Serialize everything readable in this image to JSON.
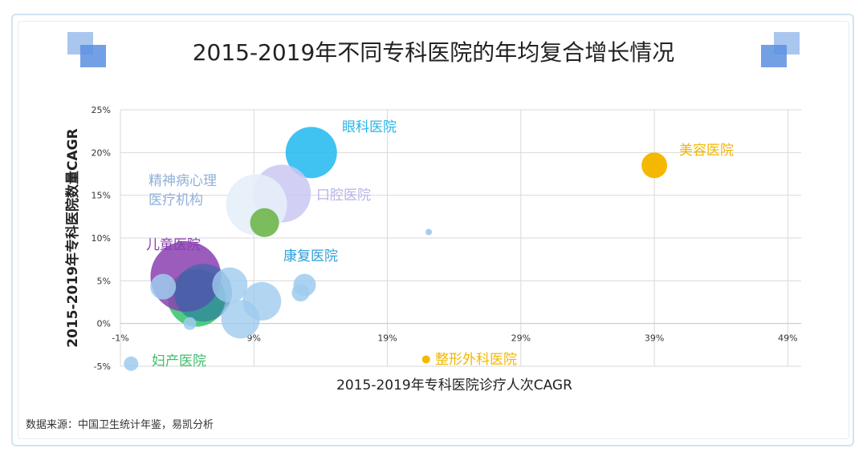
{
  "title": "2015-2019年不同专科医院的年均复合增长情况",
  "source": "数据来源：中国卫生统计年鉴，易凯分析",
  "chart_data": {
    "type": "scatter",
    "title": "2015-2019年不同专科医院的年均复合增长情况",
    "xlabel": "2015-2019年专科医院诊疗人次CAGR",
    "ylabel": "2015-2019年专科医院数量CAGR",
    "xlim": [
      -1,
      50
    ],
    "ylim": [
      -5,
      25
    ],
    "x_ticks": [
      "-1%",
      "9%",
      "19%",
      "29%",
      "39%",
      "49%"
    ],
    "x_tick_values": [
      -1,
      9,
      19,
      29,
      39,
      49
    ],
    "y_ticks": [
      "-5%",
      "0%",
      "5%",
      "10%",
      "15%",
      "20%",
      "25%"
    ],
    "y_tick_values": [
      -5,
      0,
      5,
      10,
      15,
      20,
      25
    ],
    "grid": true,
    "points": [
      {
        "x": 13.3,
        "y": 20.0,
        "r": 32,
        "color": "#2bbcf0",
        "opacity": 0.9,
        "label": "眼科医院",
        "label_color": "#29b6e6"
      },
      {
        "x": 11.1,
        "y": 15.2,
        "r": 36,
        "color": "#c9c7f2",
        "opacity": 0.85,
        "label": "口腔医院",
        "label_color": "#b7b3ea"
      },
      {
        "x": 39.0,
        "y": 18.5,
        "r": 16,
        "color": "#f5b800",
        "opacity": 1,
        "label": "美容医院",
        "label_color": "#f2b600"
      },
      {
        "x": 9.2,
        "y": 13.9,
        "r": 38,
        "color": "#e6eef9",
        "opacity": 0.9,
        "label": "精神病心理医疗机构",
        "label_color": "#8fb0d8"
      },
      {
        "x": 9.8,
        "y": 11.8,
        "r": 18,
        "color": "#6fb64a",
        "opacity": 0.9,
        "label": "",
        "label_color": ""
      },
      {
        "x": 22.1,
        "y": 10.7,
        "r": 4,
        "color": "#a8cdee",
        "opacity": 1,
        "label": "",
        "label_color": ""
      },
      {
        "x": 4.7,
        "y": 3.0,
        "r": 36,
        "color": "#34c46a",
        "opacity": 0.85,
        "label": "",
        "label_color": ""
      },
      {
        "x": 3.9,
        "y": 5.5,
        "r": 44,
        "color": "#8a3fb0",
        "opacity": 0.85,
        "label": "儿童医院",
        "label_color": "#8a3fb0"
      },
      {
        "x": 5.2,
        "y": 3.6,
        "r": 36,
        "color": "#1f6aa8",
        "opacity": 0.55,
        "label": "",
        "label_color": ""
      },
      {
        "x": 7.2,
        "y": 4.5,
        "r": 22,
        "color": "#9fcbef",
        "opacity": 0.8,
        "label": "",
        "label_color": ""
      },
      {
        "x": 9.6,
        "y": 2.6,
        "r": 24,
        "color": "#9fcbef",
        "opacity": 0.8,
        "label": "",
        "label_color": ""
      },
      {
        "x": 8.0,
        "y": 0.5,
        "r": 24,
        "color": "#9fcbef",
        "opacity": 0.8,
        "label": "",
        "label_color": ""
      },
      {
        "x": 2.2,
        "y": 4.3,
        "r": 16,
        "color": "#9fcbef",
        "opacity": 0.85,
        "label": "",
        "label_color": ""
      },
      {
        "x": 12.8,
        "y": 4.5,
        "r": 14,
        "color": "#9fcbef",
        "opacity": 0.85,
        "label": "康复医院",
        "label_color": "#2f9fd8"
      },
      {
        "x": 12.5,
        "y": 3.6,
        "r": 11,
        "color": "#9fcbef",
        "opacity": 0.85,
        "label": "",
        "label_color": ""
      },
      {
        "x": 4.2,
        "y": 0.0,
        "r": 8,
        "color": "#9fcbef",
        "opacity": 0.85,
        "label": "",
        "label_color": ""
      },
      {
        "x": -0.2,
        "y": -4.7,
        "r": 9,
        "color": "#9fcbef",
        "opacity": 0.85,
        "label": "妇产医院",
        "label_color": "#3dbf6a"
      },
      {
        "x": 21.9,
        "y": -4.2,
        "r": 5,
        "color": "#f5b800",
        "opacity": 1,
        "label": "整形外科医院",
        "label_color": "#f2b600"
      }
    ]
  }
}
